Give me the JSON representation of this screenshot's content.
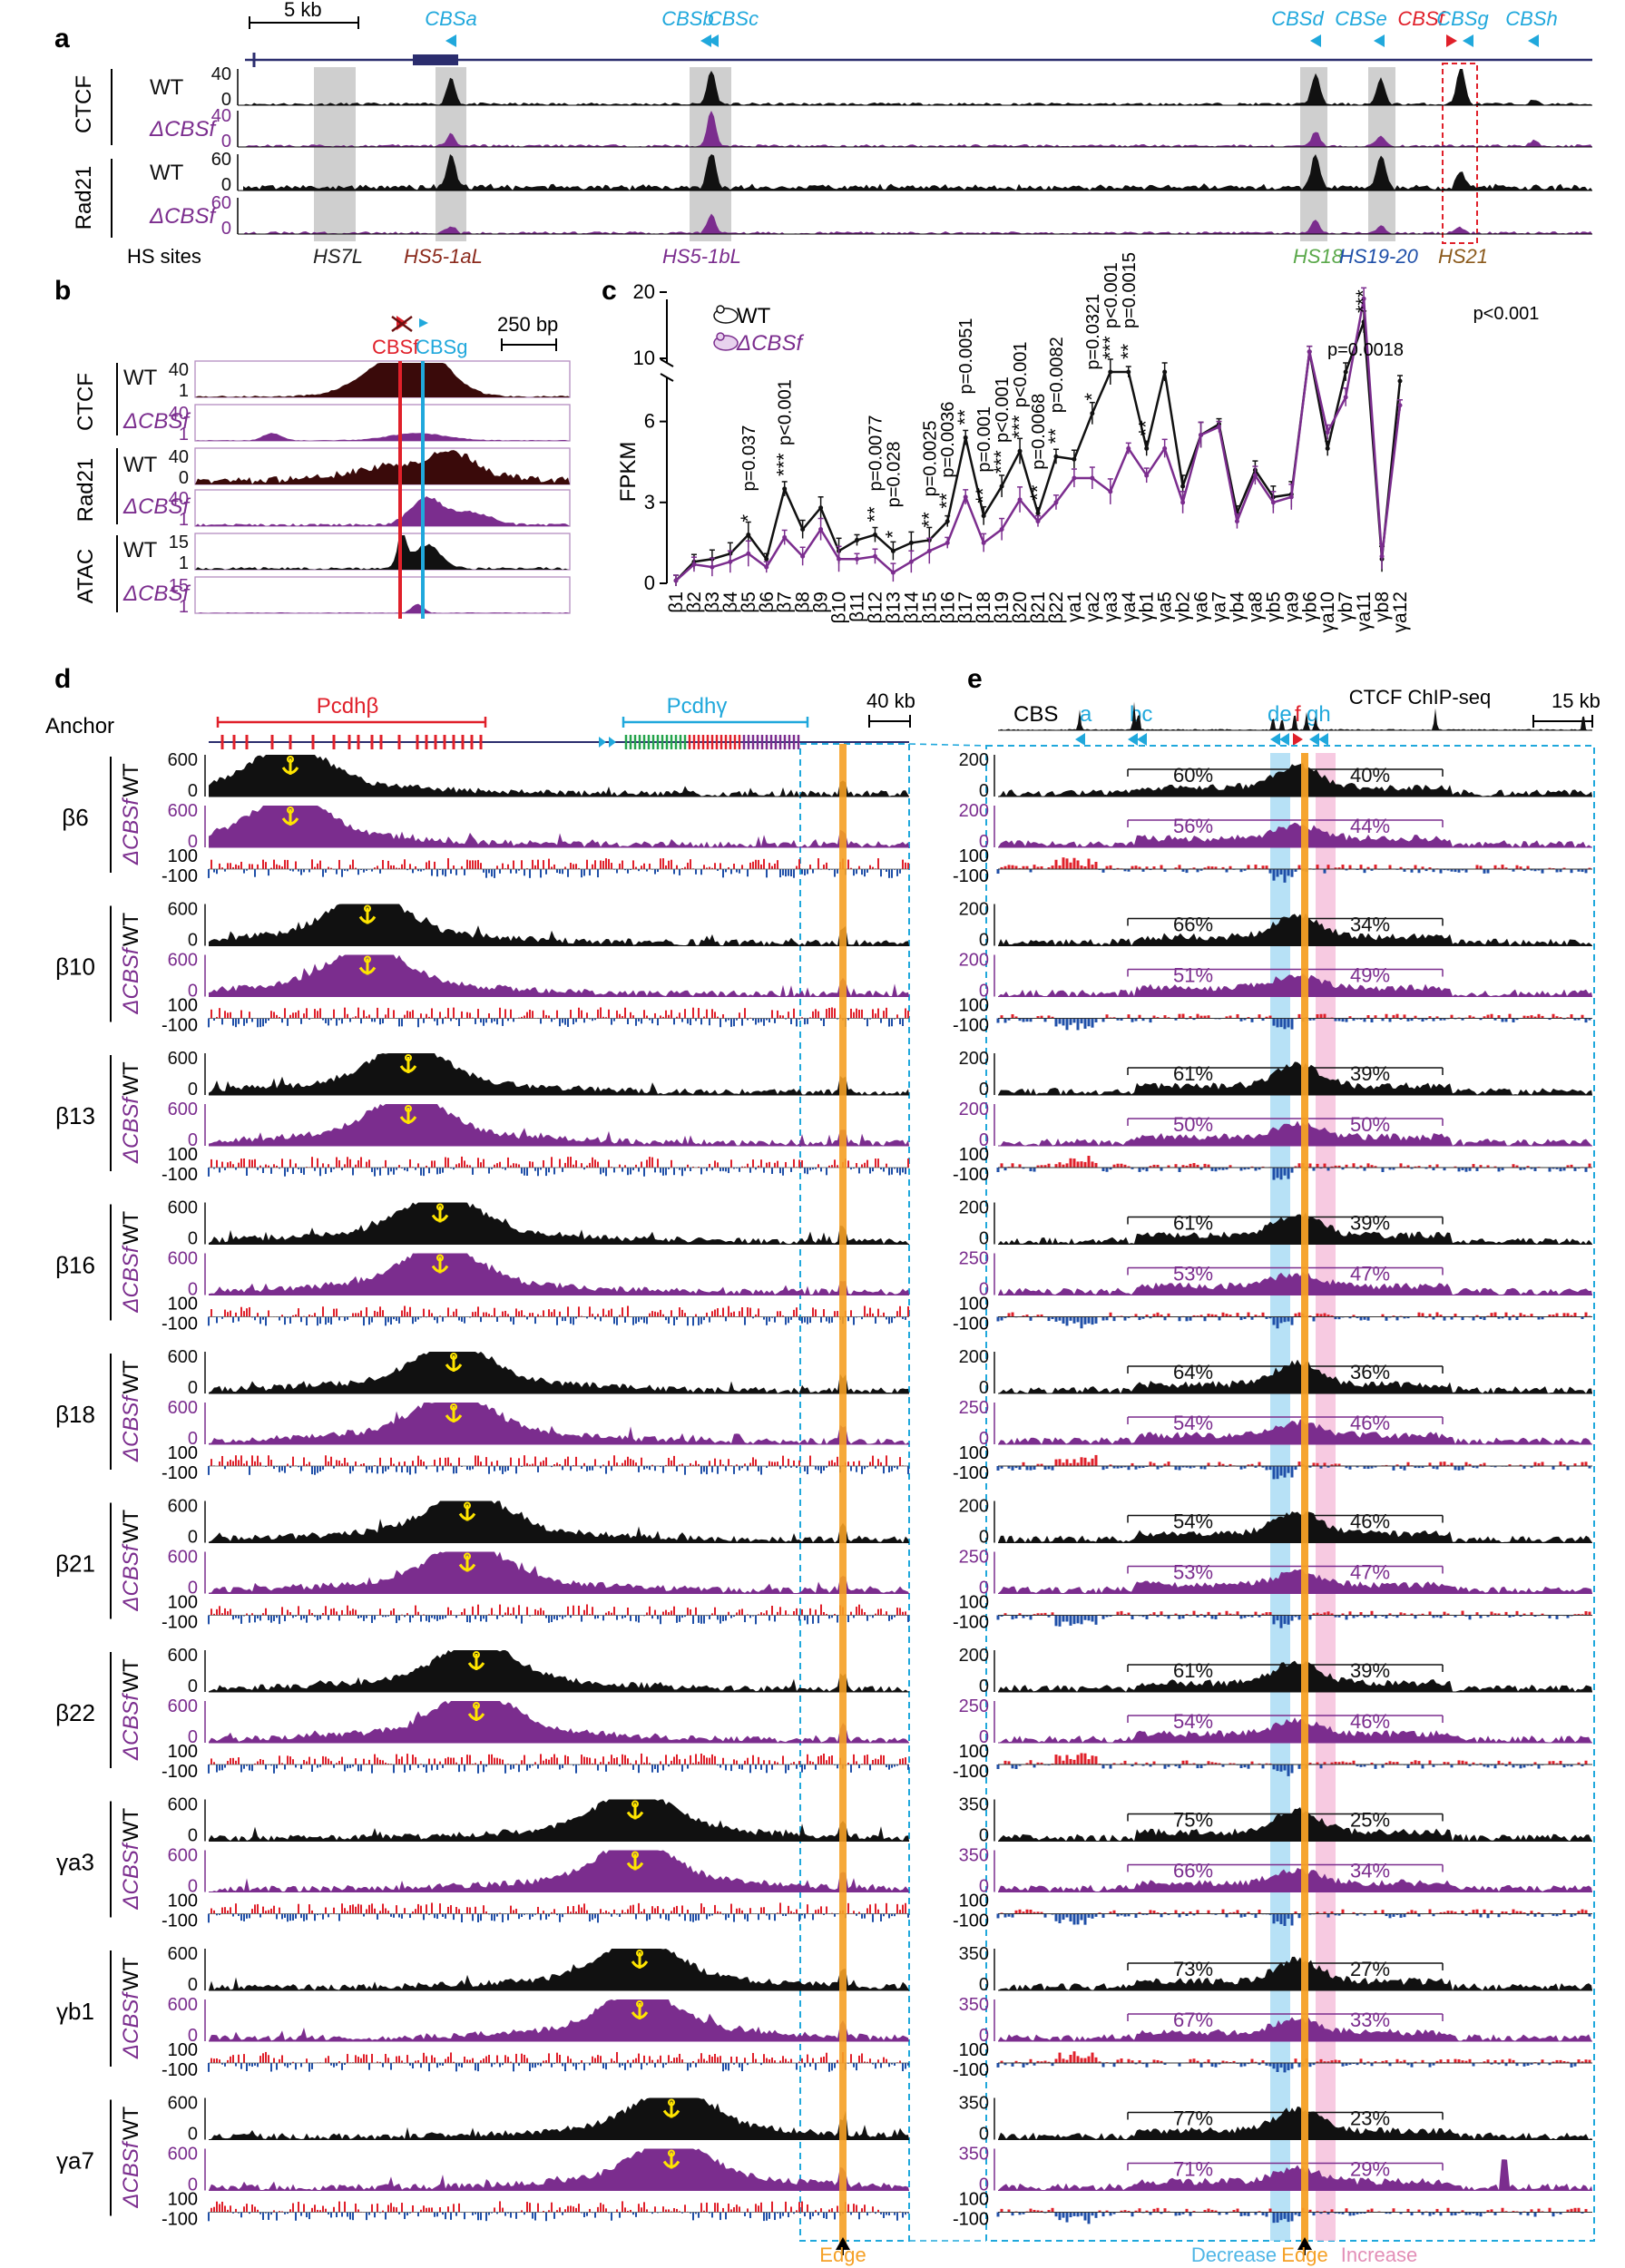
{
  "panel_labels": [
    "a",
    "b",
    "c",
    "d",
    "e"
  ],
  "colors": {
    "wt": "#111111",
    "mutant": "#7b2d8e",
    "cbs": "#20a8dc",
    "cbsf": "#e0202a",
    "edge": "#f5a025",
    "gray_shade": "#cfcfcf",
    "decrease": "#9fd7f3",
    "increase": "#f6c1dc",
    "positive": "#e0202a",
    "negative": "#1f4fa8"
  },
  "a": {
    "scale_bar": "5 kb",
    "cbs_labels": [
      "CBSa",
      "CBSb",
      "CBSc",
      "CBSd",
      "CBSe",
      "CBSf",
      "CBSg",
      "CBSh"
    ],
    "tracks": [
      {
        "factor": "CTCF",
        "cond": "WT",
        "max": "40",
        "min": "0"
      },
      {
        "factor": "CTCF",
        "cond": "ΔCBSf",
        "max": "40",
        "min": "0"
      },
      {
        "factor": "Rad21",
        "cond": "WT",
        "max": "60",
        "min": "0"
      },
      {
        "factor": "Rad21",
        "cond": "ΔCBSf",
        "max": "60",
        "min": "0"
      }
    ],
    "factors": [
      "CTCF",
      "Rad21"
    ],
    "hs_title": "HS sites",
    "hs_sites": [
      "HS7L",
      "HS5-1aL",
      "HS5-1bL",
      "HS18",
      "HS19-20",
      "HS21"
    ]
  },
  "b": {
    "scale_bar": "250 bp",
    "cbsf": "CBSf",
    "cbsg": "CBSg",
    "factors": [
      "CTCF",
      "Rad21",
      "ATAC"
    ],
    "tracks": [
      {
        "cond": "WT",
        "max": "40",
        "min": "1"
      },
      {
        "cond": "ΔCBSf",
        "max": "40",
        "min": "1"
      },
      {
        "cond": "WT",
        "max": "40",
        "min": "0"
      },
      {
        "cond": "ΔCBSf",
        "max": "40",
        "min": "1"
      },
      {
        "cond": "WT",
        "max": "15",
        "min": "1"
      },
      {
        "cond": "ΔCBSf",
        "max": "15",
        "min": "1"
      }
    ]
  },
  "chart_data": {
    "type": "line",
    "ylabel": "FPKM",
    "legend": [
      "WT",
      "ΔCBSf"
    ],
    "yticks": [
      "0",
      "3",
      "6",
      "10",
      "20"
    ],
    "categories": [
      "β1",
      "β2",
      "β3",
      "β4",
      "β5",
      "β6",
      "β7",
      "β8",
      "β9",
      "β10",
      "β11",
      "β12",
      "β13",
      "β14",
      "β15",
      "β16",
      "β17",
      "β18",
      "β19",
      "β20",
      "β21",
      "β22",
      "γa1",
      "γa2",
      "γa3",
      "γa4",
      "γb1",
      "γa5",
      "γb2",
      "γa6",
      "γa7",
      "γb4",
      "γa8",
      "γb5",
      "γa9",
      "γb6",
      "γa10",
      "γb7",
      "γa11",
      "γb8",
      "γa12"
    ],
    "series": [
      {
        "name": "WT",
        "values": [
          0.1,
          0.8,
          0.9,
          1.1,
          1.8,
          0.9,
          3.5,
          2.0,
          2.8,
          1.2,
          1.6,
          1.8,
          1.2,
          1.5,
          1.6,
          2.3,
          5.4,
          2.5,
          3.6,
          4.9,
          2.6,
          4.7,
          4.6,
          6.3,
          8.5,
          8.0,
          5.0,
          7.6,
          3.6,
          5.5,
          5.9,
          2.6,
          4.2,
          3.2,
          3.3,
          11.0,
          5.0,
          8.0,
          15.5,
          0.9,
          7.5
        ]
      },
      {
        "name": "ΔCBSf",
        "values": [
          0.1,
          0.7,
          0.6,
          0.8,
          1.1,
          0.6,
          1.7,
          1.0,
          2.0,
          0.9,
          0.9,
          1.0,
          0.4,
          0.8,
          1.2,
          1.5,
          3.2,
          1.5,
          2.0,
          3.1,
          2.3,
          3.0,
          3.9,
          3.9,
          3.4,
          5.0,
          4.0,
          5.0,
          3.0,
          5.5,
          5.8,
          2.3,
          4.0,
          3.0,
          3.2,
          11.0,
          5.6,
          6.9,
          19.0,
          1.0,
          6.6
        ]
      }
    ],
    "ann": [
      "p=0.037",
      "p<0.001",
      "p=0.0077",
      "p=0.028",
      "p=0.0025",
      "p=0.0036",
      "p=0.0051",
      "p=0.001",
      "p<0.001",
      "p<0.001",
      "p=0.0068",
      "p=0.0082",
      "p=0.0321",
      "p<0.001",
      "p=0.0015",
      "p=0.0018",
      "p<0.001"
    ],
    "stars": [
      "*",
      "***",
      "**",
      "*",
      "**",
      "**",
      "**",
      "**",
      "***",
      "***",
      "**",
      "**",
      "*",
      "***",
      "**",
      "**",
      "***"
    ]
  },
  "d": {
    "anchor": "Anchor",
    "pcdhb": "Pcdhβ",
    "pcdhg": "Pcdhγ",
    "scale_bar": "40 kb",
    "edge": "Edge",
    "wt_label": "WT",
    "mut_label": "ΔCBSf",
    "ticks": [
      "600",
      "0",
      "100",
      "-100"
    ],
    "groups": [
      {
        "name": "β6"
      },
      {
        "name": "β10"
      },
      {
        "name": "β13"
      },
      {
        "name": "β16"
      },
      {
        "name": "β18"
      },
      {
        "name": "β21"
      },
      {
        "name": "β22"
      },
      {
        "name": "γa3"
      },
      {
        "name": "γb1"
      },
      {
        "name": "γa7"
      }
    ]
  },
  "e": {
    "cbs": "CBS",
    "cbs_letters": [
      "a",
      "bc",
      "de",
      "f",
      "gh"
    ],
    "chip": "CTCF ChIP-seq",
    "scale_bar": "15 kb",
    "decrease": "Decrease",
    "edge": "Edge",
    "increase": "Increase",
    "tick_low": "0",
    "tick_100": "100",
    "tick_m100": "-100",
    "groups": [
      {
        "wt_max": "200",
        "mut_max": "200",
        "wt_l": "60%",
        "wt_r": "40%",
        "mut_l": "56%",
        "mut_r": "44%"
      },
      {
        "wt_max": "200",
        "mut_max": "200",
        "wt_l": "66%",
        "wt_r": "34%",
        "mut_l": "51%",
        "mut_r": "49%"
      },
      {
        "wt_max": "200",
        "mut_max": "200",
        "wt_l": "61%",
        "wt_r": "39%",
        "mut_l": "50%",
        "mut_r": "50%"
      },
      {
        "wt_max": "200",
        "mut_max": "250",
        "wt_l": "61%",
        "wt_r": "39%",
        "mut_l": "53%",
        "mut_r": "47%"
      },
      {
        "wt_max": "200",
        "mut_max": "250",
        "wt_l": "64%",
        "wt_r": "36%",
        "mut_l": "54%",
        "mut_r": "46%"
      },
      {
        "wt_max": "200",
        "mut_max": "250",
        "wt_l": "54%",
        "wt_r": "46%",
        "mut_l": "53%",
        "mut_r": "47%"
      },
      {
        "wt_max": "200",
        "mut_max": "250",
        "wt_l": "61%",
        "wt_r": "39%",
        "mut_l": "54%",
        "mut_r": "46%"
      },
      {
        "wt_max": "350",
        "mut_max": "350",
        "wt_l": "75%",
        "wt_r": "25%",
        "mut_l": "66%",
        "mut_r": "34%"
      },
      {
        "wt_max": "350",
        "mut_max": "350",
        "wt_l": "73%",
        "wt_r": "27%",
        "mut_l": "67%",
        "mut_r": "33%"
      },
      {
        "wt_max": "350",
        "mut_max": "350",
        "wt_l": "77%",
        "wt_r": "23%",
        "mut_l": "71%",
        "mut_r": "29%"
      }
    ]
  }
}
